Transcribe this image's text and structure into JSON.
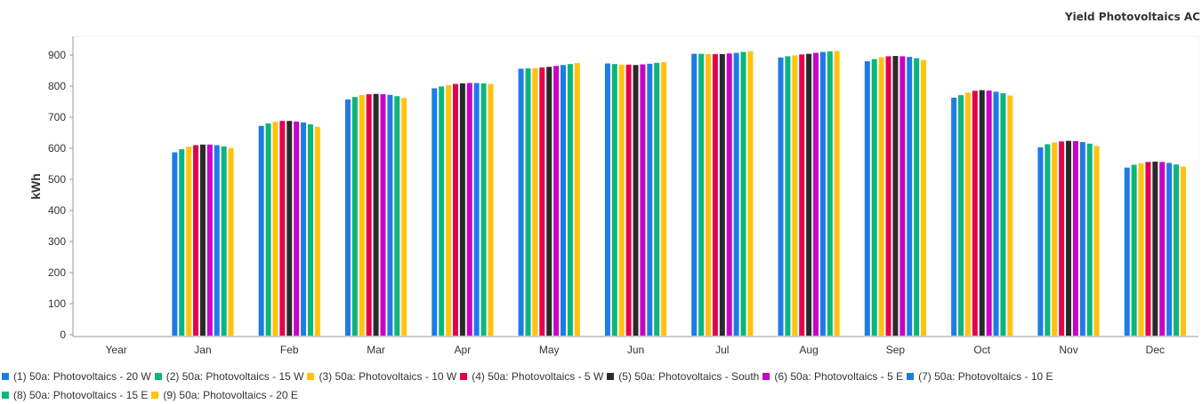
{
  "chart_data": {
    "type": "bar",
    "title": "Yield Photovoltaics AC",
    "ylabel": "kWh",
    "xlabel": "",
    "ylim": [
      0,
      950
    ],
    "yticks": [
      0,
      100,
      200,
      300,
      400,
      500,
      600,
      700,
      800,
      900
    ],
    "grid": false,
    "legend_position": "bottom",
    "categories": [
      "Year",
      "Jan",
      "Feb",
      "Mar",
      "Apr",
      "May",
      "Jun",
      "Jul",
      "Aug",
      "Sep",
      "Oct",
      "Nov",
      "Dec"
    ],
    "series": [
      {
        "name": "(1) 50a: Photovoltaics - 20 W",
        "color": "#1e7be6",
        "values": [
          null,
          587,
          672,
          757,
          793,
          856,
          873,
          904,
          892,
          880,
          763,
          603,
          538
        ]
      },
      {
        "name": "(2) 50a: Photovoltaics - 15 W",
        "color": "#0cb57c",
        "values": [
          null,
          597,
          680,
          765,
          799,
          857,
          871,
          904,
          896,
          887,
          771,
          613,
          547
        ]
      },
      {
        "name": "(3) 50a: Photovoltaics - 10 W",
        "color": "#ffc20e",
        "values": [
          null,
          605,
          685,
          771,
          803,
          858,
          869,
          903,
          899,
          893,
          779,
          619,
          552
        ]
      },
      {
        "name": "(4) 50a: Photovoltaics - 5 W",
        "color": "#e5004f",
        "values": [
          null,
          610,
          688,
          774,
          807,
          860,
          869,
          903,
          902,
          896,
          785,
          622,
          556
        ]
      },
      {
        "name": "(5) 50a: Photovoltaics - South",
        "color": "#2a2a2a",
        "values": [
          null,
          612,
          688,
          775,
          809,
          862,
          868,
          903,
          904,
          897,
          787,
          624,
          557
        ]
      },
      {
        "name": "(6) 50a: Photovoltaics - 5 E",
        "color": "#c800c8",
        "values": [
          null,
          612,
          686,
          774,
          810,
          865,
          870,
          905,
          907,
          896,
          786,
          623,
          556
        ]
      },
      {
        "name": "(7) 50a: Photovoltaics - 10 E",
        "color": "#1e7be6",
        "values": [
          null,
          610,
          683,
          772,
          810,
          868,
          872,
          907,
          910,
          894,
          782,
          620,
          553
        ]
      },
      {
        "name": "(8) 50a: Photovoltaics - 15 E",
        "color": "#0cb57c",
        "values": [
          null,
          606,
          677,
          768,
          809,
          871,
          875,
          910,
          912,
          890,
          777,
          615,
          548
        ]
      },
      {
        "name": "(9) 50a: Photovoltaics - 20 E",
        "color": "#ffc20e",
        "values": [
          null,
          601,
          669,
          762,
          807,
          874,
          877,
          912,
          913,
          884,
          770,
          607,
          541
        ]
      }
    ]
  }
}
